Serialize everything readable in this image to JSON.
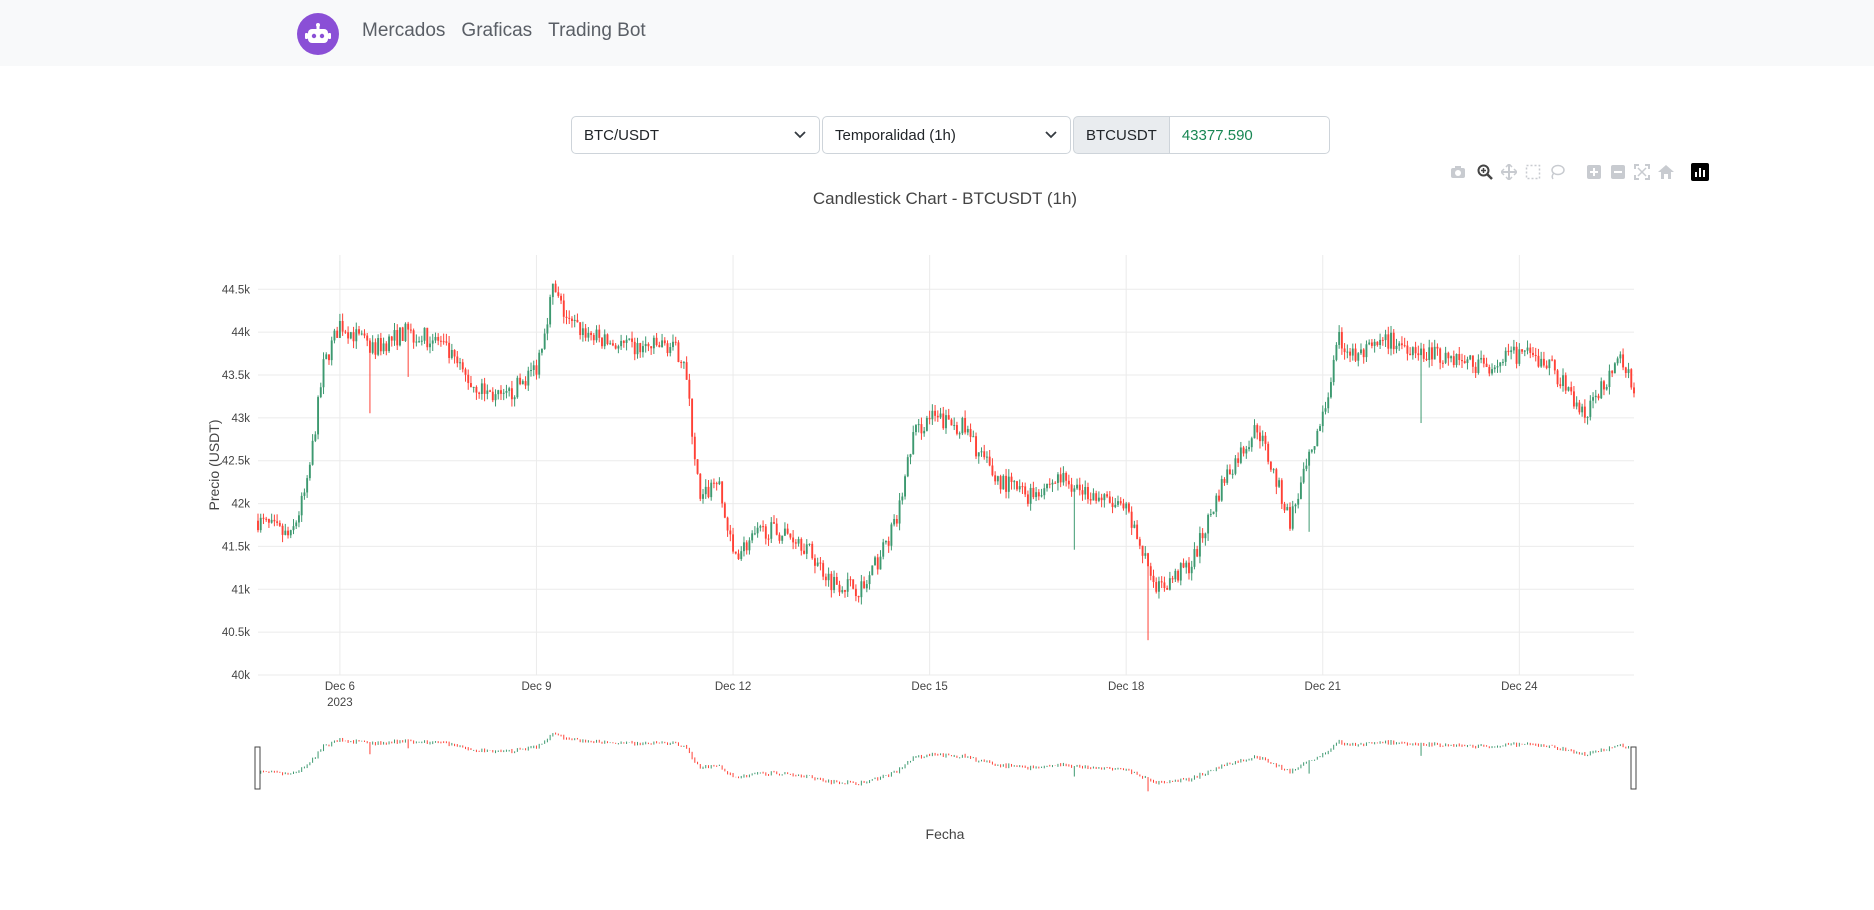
{
  "nav": {
    "brand_icon": "robot-icon",
    "links": [
      "Mercados",
      "Graficas",
      "Trading Bot"
    ]
  },
  "controls": {
    "pair_select": "BTC/USDT",
    "timeframe_select": "Temporalidad (1h)",
    "symbol_label": "BTCUSDT",
    "price_value": "43377.590"
  },
  "modebar": [
    "camera-icon",
    "zoom-icon",
    "pan-icon",
    "box-select-icon",
    "lasso-icon",
    "zoom-in-icon",
    "zoom-out-icon",
    "autoscale-icon",
    "home-icon",
    "plotly-logo-icon"
  ],
  "colors": {
    "increasing": "#3d9970",
    "decreasing": "#ff4136",
    "brand": "#8a4fd6",
    "price": "#198754"
  },
  "chart_data": {
    "type": "candlestick",
    "title": "Candlestick Chart - BTCUSDT (1h)",
    "xlabel": "Fecha",
    "ylabel": "Precio (USDT)",
    "ylim": [
      40000,
      44900
    ],
    "yticks": [
      40000,
      40500,
      41000,
      41500,
      42000,
      42500,
      43000,
      43500,
      44000,
      44500
    ],
    "ytick_labels": [
      "40k",
      "40.5k",
      "41k",
      "41.5k",
      "42k",
      "42.5k",
      "43k",
      "43.5k",
      "44k",
      "44.5k"
    ],
    "x_start": "2023-12-04 18:00",
    "x_end": "2023-12-25 18:00",
    "xticks": [
      "Dec 6",
      "Dec 9",
      "Dec 12",
      "Dec 15",
      "Dec 18",
      "Dec 21",
      "Dec 24"
    ],
    "xtick_year": "2023",
    "approx_close_path": [
      [
        "2023-12-04 18:00",
        41800
      ],
      [
        "2023-12-05 06:00",
        41600
      ],
      [
        "2023-12-05 12:00",
        42200
      ],
      [
        "2023-12-05 18:00",
        43600
      ],
      [
        "2023-12-06 00:00",
        44100
      ],
      [
        "2023-12-06 12:00",
        43800
      ],
      [
        "2023-12-07 00:00",
        44000
      ],
      [
        "2023-12-07 12:00",
        43900
      ],
      [
        "2023-12-08 00:00",
        43400
      ],
      [
        "2023-12-08 12:00",
        43200
      ],
      [
        "2023-12-09 00:00",
        43600
      ],
      [
        "2023-12-09 06:00",
        44500
      ],
      [
        "2023-12-09 12:00",
        44100
      ],
      [
        "2023-12-10 00:00",
        43900
      ],
      [
        "2023-12-10 12:00",
        43800
      ],
      [
        "2023-12-11 00:00",
        43850
      ],
      [
        "2023-12-11 06:00",
        43700
      ],
      [
        "2023-12-11 12:00",
        42000
      ],
      [
        "2023-12-11 18:00",
        42300
      ],
      [
        "2023-12-12 00:00",
        41400
      ],
      [
        "2023-12-12 12:00",
        41700
      ],
      [
        "2023-12-13 00:00",
        41600
      ],
      [
        "2023-12-13 12:00",
        41100
      ],
      [
        "2023-12-14 00:00",
        41000
      ],
      [
        "2023-12-14 12:00",
        41800
      ],
      [
        "2023-12-14 18:00",
        42800
      ],
      [
        "2023-12-15 00:00",
        43000
      ],
      [
        "2023-12-15 12:00",
        42900
      ],
      [
        "2023-12-16 00:00",
        42300
      ],
      [
        "2023-12-16 12:00",
        42100
      ],
      [
        "2023-12-17 00:00",
        42300
      ],
      [
        "2023-12-17 12:00",
        42100
      ],
      [
        "2023-12-18 00:00",
        41900
      ],
      [
        "2023-12-18 12:00",
        41000
      ],
      [
        "2023-12-19 00:00",
        41300
      ],
      [
        "2023-12-19 12:00",
        42300
      ],
      [
        "2023-12-20 00:00",
        42900
      ],
      [
        "2023-12-20 12:00",
        41800
      ],
      [
        "2023-12-21 00:00",
        43000
      ],
      [
        "2023-12-21 06:00",
        43900
      ],
      [
        "2023-12-21 12:00",
        43700
      ],
      [
        "2023-12-22 00:00",
        43900
      ],
      [
        "2023-12-22 12:00",
        43800
      ],
      [
        "2023-12-23 00:00",
        43700
      ],
      [
        "2023-12-23 12:00",
        43600
      ],
      [
        "2023-12-24 00:00",
        43750
      ],
      [
        "2023-12-24 12:00",
        43600
      ],
      [
        "2023-12-25 00:00",
        43000
      ],
      [
        "2023-12-25 12:00",
        43700
      ],
      [
        "2023-12-25 18:00",
        43377.59
      ]
    ]
  }
}
